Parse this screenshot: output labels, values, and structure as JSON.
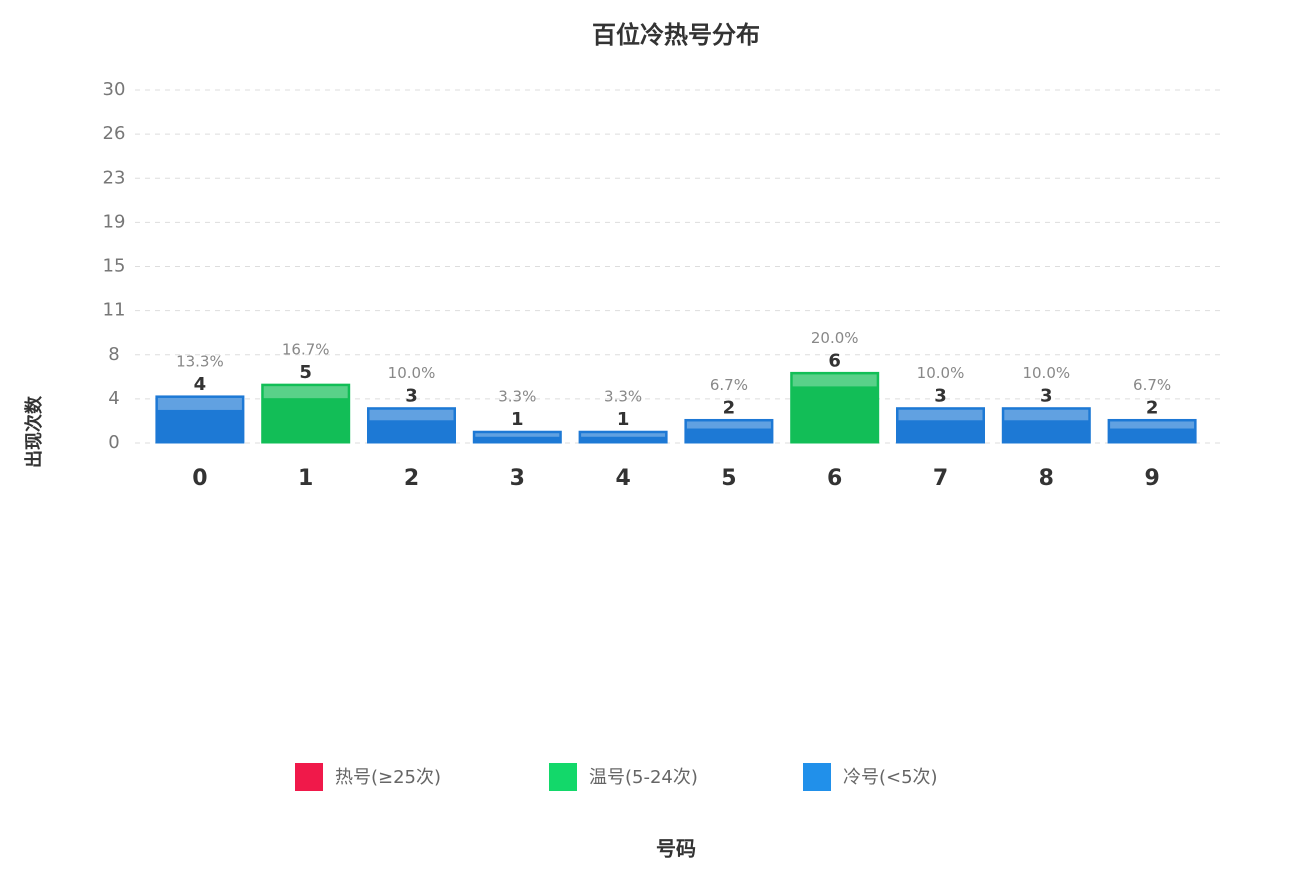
{
  "chart_data": {
    "type": "bar",
    "title": "百位冷热号分布",
    "x_label": "号码",
    "y_label": "出现次数",
    "categories": [
      "0",
      "1",
      "2",
      "3",
      "4",
      "5",
      "6",
      "7",
      "8",
      "9"
    ],
    "values": [
      4,
      5,
      3,
      1,
      1,
      2,
      6,
      3,
      3,
      2
    ],
    "percent_labels": [
      "13.3%",
      "16.7%",
      "10.0%",
      "3.3%",
      "3.3%",
      "6.7%",
      "20.0%",
      "10.0%",
      "10.0%",
      "6.7%"
    ],
    "colors": [
      "#1f7fe0",
      "#13c85c",
      "#1f7fe0",
      "#1f7fe0",
      "#1f7fe0",
      "#1f7fe0",
      "#13c85c",
      "#1f7fe0",
      "#1f7fe0",
      "#1f7fe0"
    ],
    "ylim": [
      0,
      30
    ],
    "yticks": [
      0,
      {
        "value": 3.75,
        "label": "4"
      },
      {
        "value": 7.5,
        "label": "8"
      },
      {
        "value": 11.25,
        "label": "11"
      },
      15,
      {
        "value": 18.75,
        "label": "19"
      },
      {
        "value": 22.5,
        "label": "23"
      },
      {
        "value": 26.25,
        "label": "26"
      },
      30
    ],
    "grid": true,
    "legend": [
      {
        "name": "热号(≥25次)",
        "color": "#f0194a"
      },
      {
        "name": "温号(5-24次)",
        "color": "#13d86a"
      },
      {
        "name": "冷号(<5次)",
        "color": "#2190ea"
      }
    ]
  }
}
